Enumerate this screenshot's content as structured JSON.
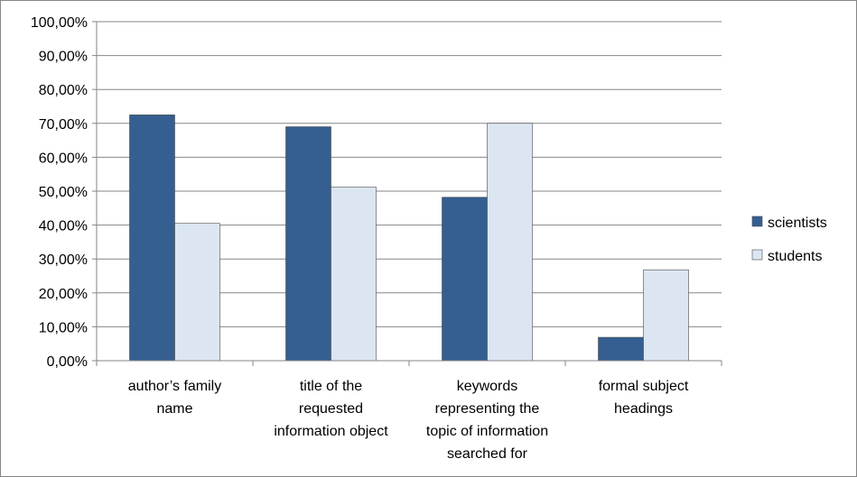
{
  "chart_data": {
    "type": "bar",
    "categories": [
      [
        "author’s family",
        "name"
      ],
      [
        "title of the",
        "requested",
        "information object"
      ],
      [
        "keywords",
        "representing the",
        "topic of information",
        "searched for"
      ],
      [
        "formal subject",
        "headings"
      ]
    ],
    "series": [
      {
        "name": "scientists",
        "color": "#355E91",
        "values": [
          72.5,
          69.0,
          48.2,
          6.9
        ]
      },
      {
        "name": "students",
        "color": "#DCE6F2",
        "values": [
          40.5,
          51.2,
          70.0,
          26.8
        ]
      }
    ],
    "ylim": [
      0,
      100
    ],
    "ytick_step": 10,
    "ytick_labels": [
      "0,00%",
      "10,00%",
      "20,00%",
      "30,00%",
      "40,00%",
      "50,00%",
      "60,00%",
      "70,00%",
      "80,00%",
      "90,00%",
      "100,00%"
    ],
    "grid": true,
    "legend_position": "right",
    "title": "",
    "xlabel": "",
    "ylabel": ""
  }
}
